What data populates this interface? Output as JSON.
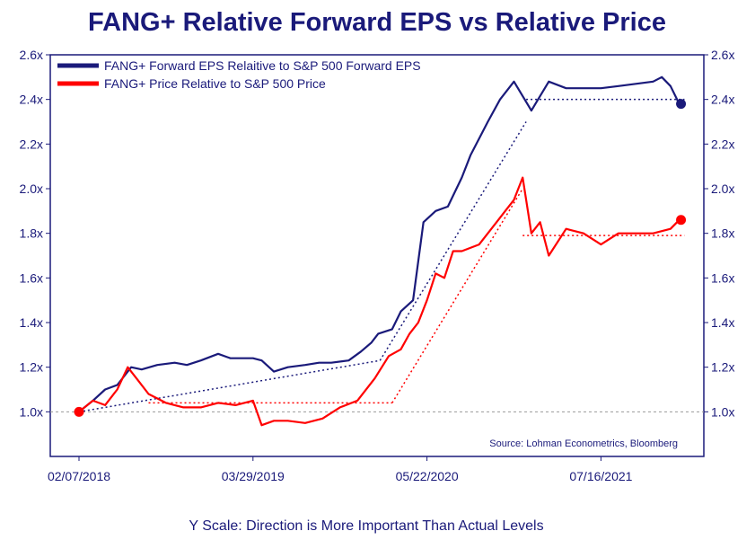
{
  "chart_data": {
    "type": "line",
    "title": "FANG+ Relative Forward EPS vs Relative Price",
    "footnote": "Y Scale: Direction is More Important Than Actual Levels",
    "source": "Source: Lohman Econometrics, Bloomberg",
    "ylim": [
      0.8,
      2.6
    ],
    "y_ticks": [
      1.0,
      1.2,
      1.4,
      1.6,
      1.8,
      2.0,
      2.2,
      2.4,
      2.6
    ],
    "y_tick_labels": [
      "1.0x",
      "1.2x",
      "1.4x",
      "1.6x",
      "1.8x",
      "2.0x",
      "2.2x",
      "2.4x",
      "2.6x"
    ],
    "x_tick_labels": [
      "02/07/2018",
      "03/29/2019",
      "05/22/2020",
      "07/16/2021"
    ],
    "x_tick_values": [
      0,
      1,
      2,
      3
    ],
    "xlim": [
      0,
      3.55
    ],
    "reference_line": 1.0,
    "colors": {
      "eps": "#1a1a7a",
      "price": "#ff0000",
      "axis": "#1a1a7a",
      "reference": "#999999"
    },
    "legend": [
      {
        "label": "FANG+ Forward EPS Relaitive to S&P 500 Forward EPS",
        "series": "eps"
      },
      {
        "label": "FANG+ Price Relative to S&P 500 Price",
        "series": "price"
      }
    ],
    "series": [
      {
        "name": "FANG+ Forward EPS Relaitive to S&P 500 Forward EPS",
        "key": "eps",
        "x": [
          0,
          0.08,
          0.15,
          0.22,
          0.3,
          0.36,
          0.45,
          0.55,
          0.62,
          0.7,
          0.8,
          0.87,
          0.95,
          1.0,
          1.05,
          1.12,
          1.2,
          1.3,
          1.38,
          1.45,
          1.55,
          1.62,
          1.68,
          1.72,
          1.8,
          1.85,
          1.92,
          1.98,
          2.05,
          2.12,
          2.2,
          2.25,
          2.35,
          2.42,
          2.5,
          2.6,
          2.7,
          2.8,
          2.9,
          3.0,
          3.1,
          3.2,
          3.3,
          3.35,
          3.4,
          3.45
        ],
        "values": [
          1.0,
          1.05,
          1.1,
          1.12,
          1.2,
          1.19,
          1.21,
          1.22,
          1.21,
          1.23,
          1.26,
          1.24,
          1.24,
          1.24,
          1.23,
          1.18,
          1.2,
          1.21,
          1.22,
          1.22,
          1.23,
          1.27,
          1.31,
          1.35,
          1.37,
          1.45,
          1.5,
          1.85,
          1.9,
          1.92,
          2.05,
          2.15,
          2.3,
          2.4,
          2.48,
          2.35,
          2.48,
          2.45,
          2.45,
          2.45,
          2.46,
          2.47,
          2.48,
          2.5,
          2.46,
          2.38
        ]
      },
      {
        "name": "FANG+ Price Relative to S&P 500 Price",
        "key": "price",
        "x": [
          0,
          0.08,
          0.15,
          0.22,
          0.28,
          0.33,
          0.4,
          0.5,
          0.6,
          0.7,
          0.8,
          0.9,
          1.0,
          1.05,
          1.12,
          1.2,
          1.3,
          1.4,
          1.5,
          1.6,
          1.7,
          1.78,
          1.85,
          1.9,
          1.95,
          2.0,
          2.05,
          2.1,
          2.15,
          2.2,
          2.3,
          2.4,
          2.45,
          2.5,
          2.55,
          2.6,
          2.65,
          2.7,
          2.8,
          2.9,
          3.0,
          3.1,
          3.2,
          3.3,
          3.4,
          3.45
        ],
        "values": [
          1.0,
          1.05,
          1.03,
          1.1,
          1.2,
          1.15,
          1.08,
          1.04,
          1.02,
          1.02,
          1.04,
          1.03,
          1.05,
          0.94,
          0.96,
          0.96,
          0.95,
          0.97,
          1.02,
          1.05,
          1.15,
          1.25,
          1.28,
          1.35,
          1.4,
          1.5,
          1.62,
          1.6,
          1.72,
          1.72,
          1.75,
          1.85,
          1.9,
          1.95,
          2.05,
          1.8,
          1.85,
          1.7,
          1.82,
          1.8,
          1.75,
          1.8,
          1.8,
          1.8,
          1.82,
          1.86
        ]
      }
    ],
    "annotations": [
      {
        "type": "trend",
        "series": "eps",
        "from": [
          0,
          1.0
        ],
        "to": [
          1.73,
          1.23
        ]
      },
      {
        "type": "trend",
        "series": "eps",
        "from": [
          1.73,
          1.23
        ],
        "to": [
          2.57,
          2.3
        ]
      },
      {
        "type": "trend",
        "series": "eps",
        "from": [
          2.57,
          2.4
        ],
        "to": [
          3.48,
          2.4
        ]
      },
      {
        "type": "trend",
        "series": "price",
        "from": [
          0.4,
          1.04
        ],
        "to": [
          1.8,
          1.04
        ]
      },
      {
        "type": "trend",
        "series": "price",
        "from": [
          1.8,
          1.04
        ],
        "to": [
          2.55,
          2.0
        ]
      },
      {
        "type": "trend",
        "series": "price",
        "from": [
          2.55,
          1.79
        ],
        "to": [
          3.48,
          1.79
        ]
      }
    ],
    "end_markers": [
      {
        "series": "eps",
        "x": 3.46,
        "value": 2.38
      },
      {
        "series": "price",
        "x": 3.46,
        "value": 1.86
      }
    ],
    "start_marker": {
      "series": "price",
      "x": 0,
      "value": 1.0
    }
  }
}
